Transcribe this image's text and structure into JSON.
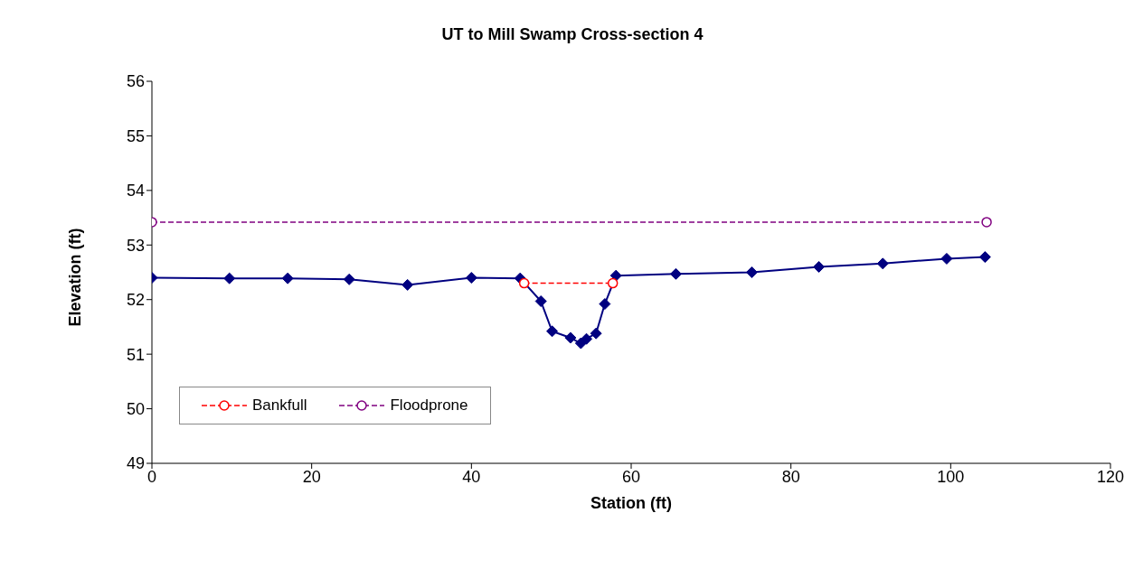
{
  "chart_data": {
    "type": "line",
    "title": "UT to Mill Swamp Cross-section 4",
    "xlabel": "Station (ft)",
    "ylabel": "Elevation (ft)",
    "xlim": [
      0,
      120
    ],
    "xticks": [
      0,
      20,
      40,
      60,
      80,
      100,
      120
    ],
    "ylim": [
      49,
      56
    ],
    "yticks": [
      49,
      50,
      51,
      52,
      53,
      54,
      55,
      56
    ],
    "grid": false,
    "legend": "bottom left",
    "series": [
      {
        "color": "#000080",
        "marker": "diamond",
        "line_style": "solid",
        "x": [
          0,
          9.7,
          17.0,
          24.7,
          32.0,
          40.0,
          46.1,
          48.7,
          50.1,
          52.4,
          53.7,
          54.4,
          55.6,
          56.7,
          58.1,
          65.6,
          75.1,
          83.5,
          91.5,
          99.5,
          104.3
        ],
        "values": [
          52.4,
          52.39,
          52.39,
          52.37,
          52.27,
          52.4,
          52.39,
          51.97,
          51.42,
          51.3,
          51.2,
          51.28,
          51.38,
          51.92,
          52.44,
          52.47,
          52.5,
          52.6,
          52.66,
          52.75,
          52.78
        ]
      },
      {
        "name": "Bankfull",
        "color": "#ff0000",
        "marker": "circle",
        "line_style": "dashed",
        "x": [
          46.6,
          57.7
        ],
        "values": [
          52.3,
          52.3
        ]
      },
      {
        "name": "Floodprone",
        "color": "#800080",
        "marker": "circle",
        "line_style": "dashed",
        "x": [
          0,
          104.5
        ],
        "values": [
          53.42,
          53.42
        ]
      }
    ]
  }
}
